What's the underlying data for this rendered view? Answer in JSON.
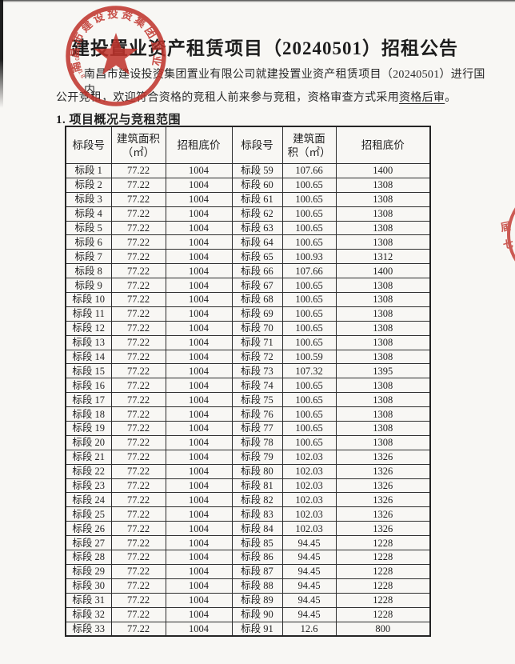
{
  "page": {
    "title": "建投置业资产租赁项目（20240501）招租公告",
    "paragraph": {
      "line1": "南昌市建设投资集团置业有限公司就建投置业资产租赁项目（20240501）进行国内",
      "line2_pre": "公开竞租，欢迎符合资格的竞租人前来参与竞租，资格审查方式采用",
      "line2_underlined": "资格后审",
      "line2_post": "。"
    },
    "section_heading": "1. 项目概况与竞租范围"
  },
  "table": {
    "col_headers": {
      "c1": "标段号",
      "c2a": "建筑面积",
      "c2b": "（㎡）",
      "c3": "招租底价",
      "c4": "标段号",
      "c5a": "建筑面",
      "c5b": "积（㎡）",
      "c6": "招租底价"
    },
    "rows": [
      [
        "标段 1",
        "77.22",
        "1004",
        "标段 59",
        "107.66",
        "1400"
      ],
      [
        "标段 2",
        "77.22",
        "1004",
        "标段 60",
        "100.65",
        "1308"
      ],
      [
        "标段 3",
        "77.22",
        "1004",
        "标段 61",
        "100.65",
        "1308"
      ],
      [
        "标段 4",
        "77.22",
        "1004",
        "标段 62",
        "100.65",
        "1308"
      ],
      [
        "标段 5",
        "77.22",
        "1004",
        "标段 63",
        "100.65",
        "1308"
      ],
      [
        "标段 6",
        "77.22",
        "1004",
        "标段 64",
        "100.65",
        "1308"
      ],
      [
        "标段 7",
        "77.22",
        "1004",
        "标段 65",
        "100.93",
        "1312"
      ],
      [
        "标段 8",
        "77.22",
        "1004",
        "标段 66",
        "107.66",
        "1400"
      ],
      [
        "标段 9",
        "77.22",
        "1004",
        "标段 67",
        "100.65",
        "1308"
      ],
      [
        "标段 10",
        "77.22",
        "1004",
        "标段 68",
        "100.65",
        "1308"
      ],
      [
        "标段 11",
        "77.22",
        "1004",
        "标段 69",
        "100.65",
        "1308"
      ],
      [
        "标段 12",
        "77.22",
        "1004",
        "标段 70",
        "100.65",
        "1308"
      ],
      [
        "标段 13",
        "77.22",
        "1004",
        "标段 71",
        "100.65",
        "1308"
      ],
      [
        "标段 14",
        "77.22",
        "1004",
        "标段 72",
        "100.59",
        "1308"
      ],
      [
        "标段 15",
        "77.22",
        "1004",
        "标段 73",
        "107.32",
        "1395"
      ],
      [
        "标段 16",
        "77.22",
        "1004",
        "标段 74",
        "100.65",
        "1308"
      ],
      [
        "标段 17",
        "77.22",
        "1004",
        "标段 75",
        "100.65",
        "1308"
      ],
      [
        "标段 18",
        "77.22",
        "1004",
        "标段 76",
        "100.65",
        "1308"
      ],
      [
        "标段 19",
        "77.22",
        "1004",
        "标段 77",
        "100.65",
        "1308"
      ],
      [
        "标段 20",
        "77.22",
        "1004",
        "标段 78",
        "100.65",
        "1308"
      ],
      [
        "标段 21",
        "77.22",
        "1004",
        "标段 79",
        "102.03",
        "1326"
      ],
      [
        "标段 22",
        "77.22",
        "1004",
        "标段 80",
        "102.03",
        "1326"
      ],
      [
        "标段 23",
        "77.22",
        "1004",
        "标段 81",
        "102.03",
        "1326"
      ],
      [
        "标段 24",
        "77.22",
        "1004",
        "标段 82",
        "102.03",
        "1326"
      ],
      [
        "标段 25",
        "77.22",
        "1004",
        "标段 83",
        "102.03",
        "1326"
      ],
      [
        "标段 26",
        "77.22",
        "1004",
        "标段 84",
        "102.03",
        "1326"
      ],
      [
        "标段 27",
        "77.22",
        "1004",
        "标段 85",
        "94.45",
        "1228"
      ],
      [
        "标段 28",
        "77.22",
        "1004",
        "标段 86",
        "94.45",
        "1228"
      ],
      [
        "标段 29",
        "77.22",
        "1004",
        "标段 87",
        "94.45",
        "1228"
      ],
      [
        "标段 30",
        "77.22",
        "1004",
        "标段 88",
        "94.45",
        "1228"
      ],
      [
        "标段 31",
        "77.22",
        "1004",
        "标段 89",
        "94.45",
        "1228"
      ],
      [
        "标段 32",
        "77.22",
        "1004",
        "标段 90",
        "94.45",
        "1228"
      ],
      [
        "标段 33",
        "77.22",
        "1004",
        "标段 91",
        "12.6",
        "800"
      ]
    ]
  },
  "seal": {
    "ring_text": "南昌市建设投资集团置业有限公司",
    "code_digits": "3601081185",
    "color": "#c0332b"
  },
  "edge_seal": {
    "char1": "届",
    "char2": "七",
    "color": "#c0332b"
  },
  "colors": {
    "paper": "#f8f7f4",
    "ink": "#262626",
    "seal_red": "#c0332b"
  }
}
